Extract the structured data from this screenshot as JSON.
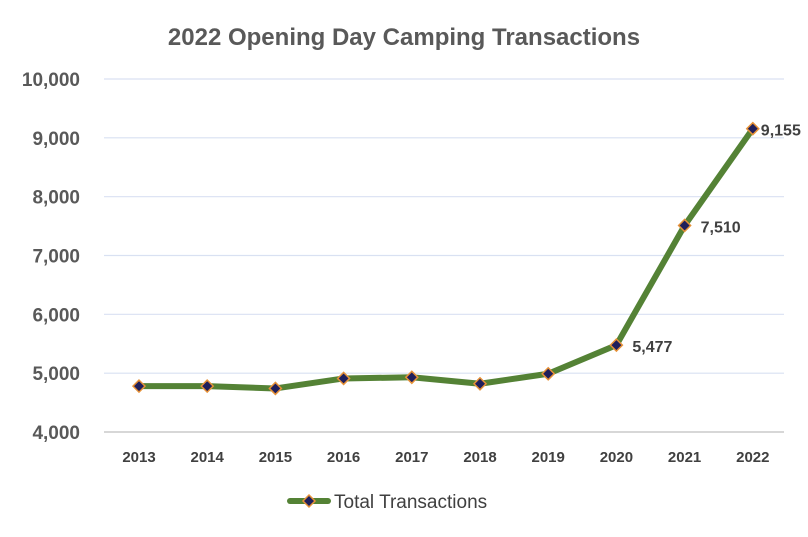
{
  "chart_data": {
    "type": "line",
    "title": "2022 Opening Day Camping Transactions",
    "categories": [
      "2013",
      "2014",
      "2015",
      "2016",
      "2017",
      "2018",
      "2019",
      "2020",
      "2021",
      "2022"
    ],
    "series": [
      {
        "name": "Total Transactions",
        "values": [
          4780,
          4780,
          4740,
          4910,
          4930,
          4820,
          4990,
          5477,
          7510,
          9155
        ],
        "line_color": "#548235",
        "marker_fill": "#1F1F5C",
        "marker_edge": "#E69138"
      }
    ],
    "y_ticks": [
      "4,000",
      "5,000",
      "6,000",
      "7,000",
      "8,000",
      "9,000",
      "10,000"
    ],
    "ylim": [
      4000,
      10000
    ],
    "data_labels": [
      {
        "category": "2020",
        "text": "5,477"
      },
      {
        "category": "2021",
        "text": "7,510"
      },
      {
        "category": "2022",
        "text": "9,155"
      }
    ],
    "grid": true,
    "grid_color": "#D9E1F2",
    "legend_position": "bottom"
  }
}
